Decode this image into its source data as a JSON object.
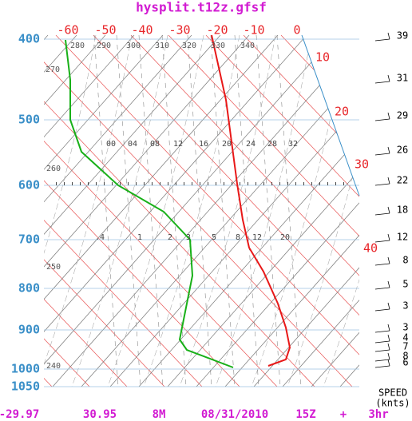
{
  "title": "hysplit.t12z.gfsf",
  "pressure_labels": [
    "400",
    "500",
    "600",
    "700",
    "800",
    "900",
    "1000",
    "1050"
  ],
  "temperature_labels": [
    "-60",
    "-50",
    "-40",
    "-30",
    "-20",
    "-10",
    "0",
    "10",
    "20",
    "30",
    "40"
  ],
  "theta_labels": [
    "280",
    "290",
    "300",
    "310",
    "320",
    "330",
    "340",
    "270",
    "260",
    "250",
    "240"
  ],
  "mixing_ratio_labels_upper": [
    "00",
    "04",
    "08",
    "12",
    "16",
    "20",
    "24",
    "28",
    "32"
  ],
  "mixing_ratio_labels_lower": [
    ".4",
    "1",
    "2",
    "3",
    "5",
    "8",
    "12",
    "20"
  ],
  "wind_speeds": [
    "39",
    "31",
    "29",
    "26",
    "22",
    "18",
    "12",
    "8",
    "5",
    "3",
    "3",
    "4",
    "7",
    "8",
    "6"
  ],
  "speed_axis": {
    "label": "SPEED",
    "unit": "(knts)"
  },
  "footer": [
    "-29.97",
    "30.95",
    "8M",
    "08/31/2010",
    "15Z",
    "+",
    "3hr"
  ]
}
